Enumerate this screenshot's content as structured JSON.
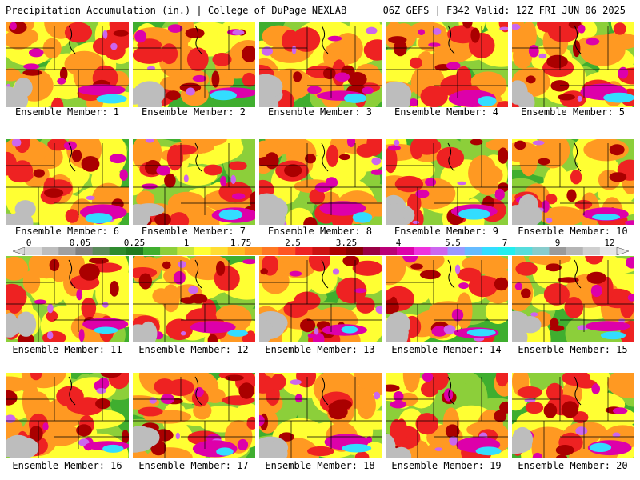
{
  "header": {
    "left": "Precipitation Accumulation (in.) | College of DuPage NEXLAB",
    "right": "06Z GEFS | F342 Valid: 12Z FRI JUN 06 2025"
  },
  "panels": [
    {
      "caption": "Ensemble Member: 1"
    },
    {
      "caption": "Ensemble Member: 2"
    },
    {
      "caption": "Ensemble Member: 3"
    },
    {
      "caption": "Ensemble Member: 4"
    },
    {
      "caption": "Ensemble Member: 5"
    },
    {
      "caption": "Ensemble Member: 6"
    },
    {
      "caption": "Ensemble Member: 7"
    },
    {
      "caption": "Ensemble Member: 8"
    },
    {
      "caption": "Ensemble Member: 9"
    },
    {
      "caption": "Ensemble Member: 10"
    },
    {
      "caption": "Ensemble Member: 11"
    },
    {
      "caption": "Ensemble Member: 12"
    },
    {
      "caption": "Ensemble Member: 13"
    },
    {
      "caption": "Ensemble Member: 14"
    },
    {
      "caption": "Ensemble Member: 15"
    },
    {
      "caption": "Ensemble Member: 16"
    },
    {
      "caption": "Ensemble Member: 17"
    },
    {
      "caption": "Ensemble Member: 18"
    },
    {
      "caption": "Ensemble Member: 19"
    },
    {
      "caption": "Ensemble Member: 20"
    }
  ],
  "colorbar": {
    "labels": [
      "0",
      "0.05",
      "0.25",
      "1",
      "1.75",
      "2.5",
      "3.25",
      "4",
      "5.5",
      "7",
      "9",
      "12"
    ],
    "colors": [
      "#d9d9d9",
      "#bdbdbd",
      "#a0a0a0",
      "#808080",
      "#5a8a5a",
      "#2e8b2e",
      "#1f7a1f",
      "#3fae2f",
      "#8ccf3a",
      "#c8e63c",
      "#ffff33",
      "#ffdd33",
      "#ffbb22",
      "#ff9922",
      "#ff7722",
      "#ff5522",
      "#ee2222",
      "#cc1111",
      "#aa0000",
      "#880000",
      "#990044",
      "#bb0077",
      "#dd00aa",
      "#ee33dd",
      "#cc66ee",
      "#9999ff",
      "#66bbff",
      "#33ddff",
      "#22eeee",
      "#55dddd",
      "#88cccc",
      "#9a9a9a",
      "#b5b5b5",
      "#cfcfcf",
      "#e6e6e6"
    ]
  },
  "palette": {
    "green_dark": "#2e8b2e",
    "green": "#3fae2f",
    "green_light": "#8ccf3a",
    "yellow": "#ffff33",
    "orange": "#ff9922",
    "red": "#ee2222",
    "darkred": "#aa0000",
    "magenta": "#dd00aa",
    "purple": "#cc66ee",
    "cyan": "#33ddff",
    "gray": "#bdbdbd"
  }
}
